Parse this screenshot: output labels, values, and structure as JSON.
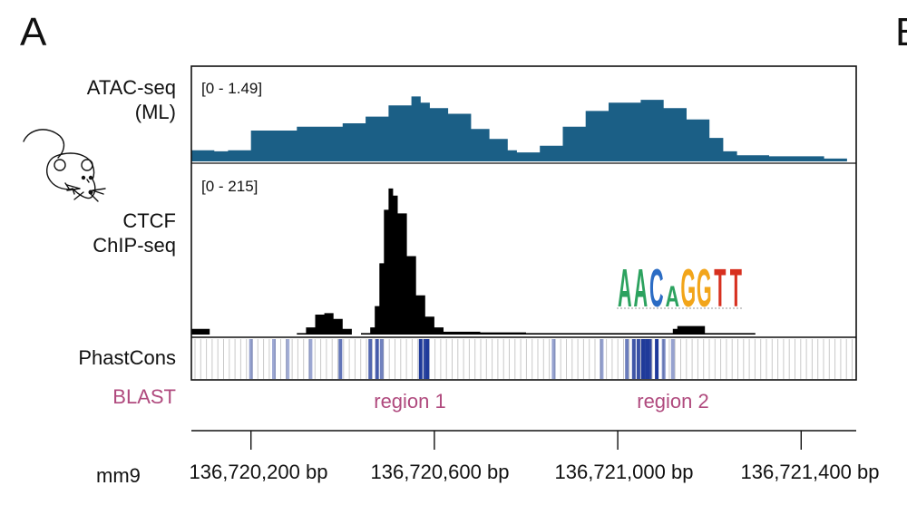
{
  "panel": {
    "letter": "A",
    "next_letter": "B"
  },
  "colors": {
    "atac": "#1b5f86",
    "ctcf": "#000000",
    "phast_high": "#1f3a9a",
    "blast": "#b04a7e"
  },
  "chart_data": {
    "type": "area",
    "genome": "mm9",
    "x_unit": "bp",
    "xlim": [
      136720070,
      136721520
    ],
    "x_ticks": [
      {
        "value": 136720200,
        "label": "136,720,200 bp"
      },
      {
        "value": 136720600,
        "label": "136,720,600 bp"
      },
      {
        "value": 136721000,
        "label": "136,721,000 bp"
      },
      {
        "value": 136721400,
        "label": "136,721,400 bp"
      }
    ],
    "tracks": {
      "atac": {
        "label_line1": "ATAC-seq",
        "label_line2": "(ML)",
        "range_label": "[0 - 1.49]",
        "ylim": [
          0,
          1.49
        ],
        "x": [
          136720070,
          136720120,
          136720150,
          136720200,
          136720300,
          136720400,
          136720450,
          136720500,
          136720550,
          136720570,
          136720590,
          136720630,
          136720680,
          136720720,
          136720760,
          136720780,
          136720830,
          136720880,
          136720930,
          136720980,
          136721050,
          136721100,
          136721150,
          136721200,
          136721230,
          136721260,
          136721300,
          136721330,
          136721380,
          136721450,
          136721500,
          136721520
        ],
        "values": [
          0.2,
          0.18,
          0.2,
          0.55,
          0.62,
          0.68,
          0.8,
          1.0,
          1.16,
          1.05,
          0.95,
          0.85,
          0.58,
          0.4,
          0.2,
          0.16,
          0.28,
          0.62,
          0.9,
          1.05,
          1.1,
          0.95,
          0.75,
          0.42,
          0.18,
          0.11,
          0.11,
          0.09,
          0.09,
          0.05,
          0.0,
          0.05
        ]
      },
      "ctcf": {
        "label_line1": "CTCF",
        "label_line2": "ChIP-seq",
        "range_label": "[0 - 215]",
        "ylim": [
          0,
          215
        ],
        "x": [
          136720070,
          136720100,
          136720110,
          136720180,
          136720300,
          136720320,
          136720340,
          136720360,
          136720380,
          136720400,
          136720420,
          136720440,
          136720460,
          136720470,
          136720480,
          136720490,
          136720500,
          136720510,
          136720520,
          136720540,
          136720560,
          136720580,
          136720600,
          136720620,
          136720700,
          136720800,
          136720900,
          136721000,
          136721100,
          136721120,
          136721130,
          136721180,
          136721190,
          136721300,
          136721520
        ],
        "values": [
          8,
          8,
          0,
          0,
          2,
          10,
          28,
          30,
          22,
          8,
          0,
          2,
          10,
          40,
          100,
          175,
          205,
          195,
          170,
          110,
          55,
          25,
          10,
          4,
          3,
          2,
          2,
          2,
          2,
          8,
          12,
          12,
          2,
          0,
          0
        ]
      },
      "phastcons": {
        "label": "PhastCons",
        "conserved_positions": [
          136720200,
          136720250,
          136720280,
          136720330,
          136720395,
          136720460,
          136720475,
          136720485,
          136720570,
          136720580,
          136720585,
          136720860,
          136720965,
          136721020,
          136721035,
          136721045,
          136721055,
          136721060,
          136721065,
          136721070,
          136721085,
          136721100,
          136721120
        ],
        "conservation_scores": [
          0.3,
          0.25,
          0.2,
          0.25,
          0.6,
          0.7,
          0.75,
          0.5,
          1.0,
          0.9,
          1.0,
          0.3,
          0.3,
          0.55,
          0.8,
          0.85,
          1.0,
          0.95,
          1.0,
          0.9,
          1.0,
          0.45,
          0.3
        ]
      }
    },
    "blast": {
      "label": "BLAST",
      "regions": [
        {
          "name": "region 1",
          "center": 136720530
        },
        {
          "name": "region 2",
          "center": 136721095
        }
      ]
    },
    "motif": {
      "letters": [
        {
          "char": "A",
          "color": "#2ca25f"
        },
        {
          "char": "A",
          "color": "#2ca25f"
        },
        {
          "char": "C",
          "color": "#2b6cc4"
        },
        {
          "char": "A",
          "color": "#2ca25f"
        },
        {
          "char": "G",
          "color": "#f2a51a"
        },
        {
          "char": "G",
          "color": "#f2a51a"
        },
        {
          "char": "T",
          "color": "#d7301f"
        },
        {
          "char": "T",
          "color": "#d7301f"
        }
      ],
      "heights": [
        1.0,
        1.0,
        1.0,
        0.55,
        1.0,
        1.0,
        1.0,
        1.0
      ]
    }
  }
}
